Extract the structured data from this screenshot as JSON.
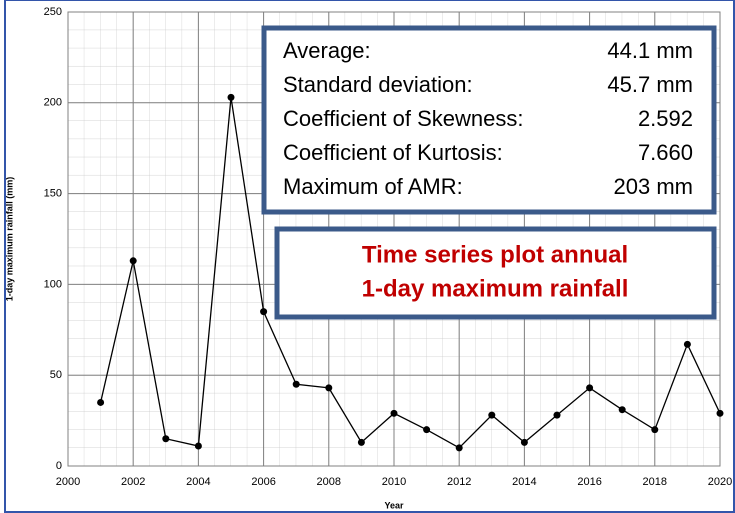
{
  "chart_data": {
    "type": "line",
    "title": [
      "Time series plot annual",
      "1-day maximum rainfall"
    ],
    "x_label": "Year",
    "y_label": "1-day maximum rainfall (mm)",
    "x": [
      2001,
      2002,
      2003,
      2004,
      2005,
      2006,
      2007,
      2008,
      2009,
      2010,
      2011,
      2012,
      2013,
      2014,
      2015,
      2016,
      2017,
      2018,
      2019,
      2020
    ],
    "series": [
      {
        "color": "#000000",
        "values": [
          35,
          113,
          15,
          11,
          203,
          85,
          45,
          43,
          13,
          29,
          20,
          10,
          28,
          13,
          28,
          43,
          31,
          20,
          67,
          29
        ]
      }
    ],
    "xlim": [
      2000,
      2020
    ],
    "xticks": [
      2000,
      2002,
      2004,
      2006,
      2008,
      2010,
      2012,
      2014,
      2016,
      2018,
      2020
    ],
    "ylim": [
      0,
      250
    ],
    "yticks": [
      0,
      50,
      100,
      150,
      200,
      250
    ],
    "grid": true,
    "stats": [
      {
        "label": "Average:",
        "value": "44.1 mm"
      },
      {
        "label": "Standard deviation:",
        "value": "45.7 mm"
      },
      {
        "label": "Coefficient of Skewness:",
        "value": "2.592"
      },
      {
        "label": "Coefficient of Kurtosis:",
        "value": "7.660"
      },
      {
        "label": "Maximum of AMR:",
        "value": "203 mm"
      }
    ]
  }
}
